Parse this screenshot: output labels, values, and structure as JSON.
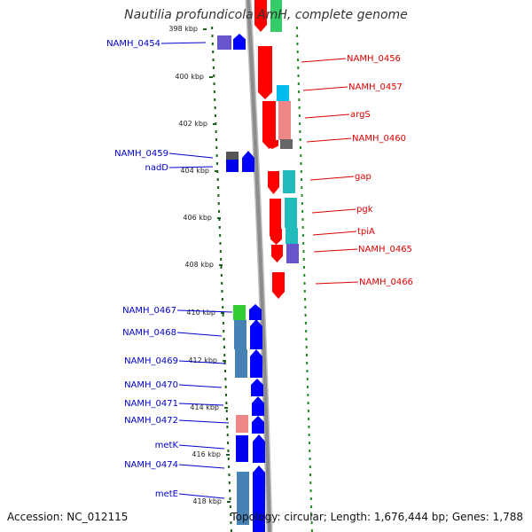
{
  "title": "Nautilia profundicola AmH, complete genome",
  "footer": {
    "accession": "Accession: NC_012115",
    "summary": "Topology: circular; Length: 1,676,444 bp; Genes: 1,788"
  },
  "colors": {
    "plus_label": "#0000cc",
    "minus_label": "#dd0000",
    "plus_arrow": "#0000ff",
    "minus_arrow": "#ff0000",
    "tick_green": "#228b22",
    "backbone": "#8c8c8c"
  },
  "map": {
    "kbp_ticks": [
      "398 kbp",
      "400 kbp",
      "402 kbp",
      "404 kbp",
      "406 kbp",
      "408 kbp",
      "410 kbp",
      "412 kbp",
      "414 kbp",
      "416 kbp",
      "418 kbp"
    ],
    "kbp_values": [
      398,
      400,
      402,
      404,
      406,
      408,
      410,
      412,
      414,
      416,
      418
    ],
    "minus_strand_labels": [
      "NAMH_0456",
      "NAMH_0457",
      "argS",
      "NAMH_0460",
      "gap",
      "pgk",
      "tpiA",
      "NAMH_0465",
      "NAMH_0466"
    ],
    "plus_strand_labels": [
      "NAMH_0454",
      "NAMH_0459",
      "nadD",
      "NAMH_0467",
      "NAMH_0468",
      "NAMH_0469",
      "NAMH_0470",
      "NAMH_0471",
      "NAMH_0472",
      "metK",
      "NAMH_0474",
      "metE"
    ]
  }
}
